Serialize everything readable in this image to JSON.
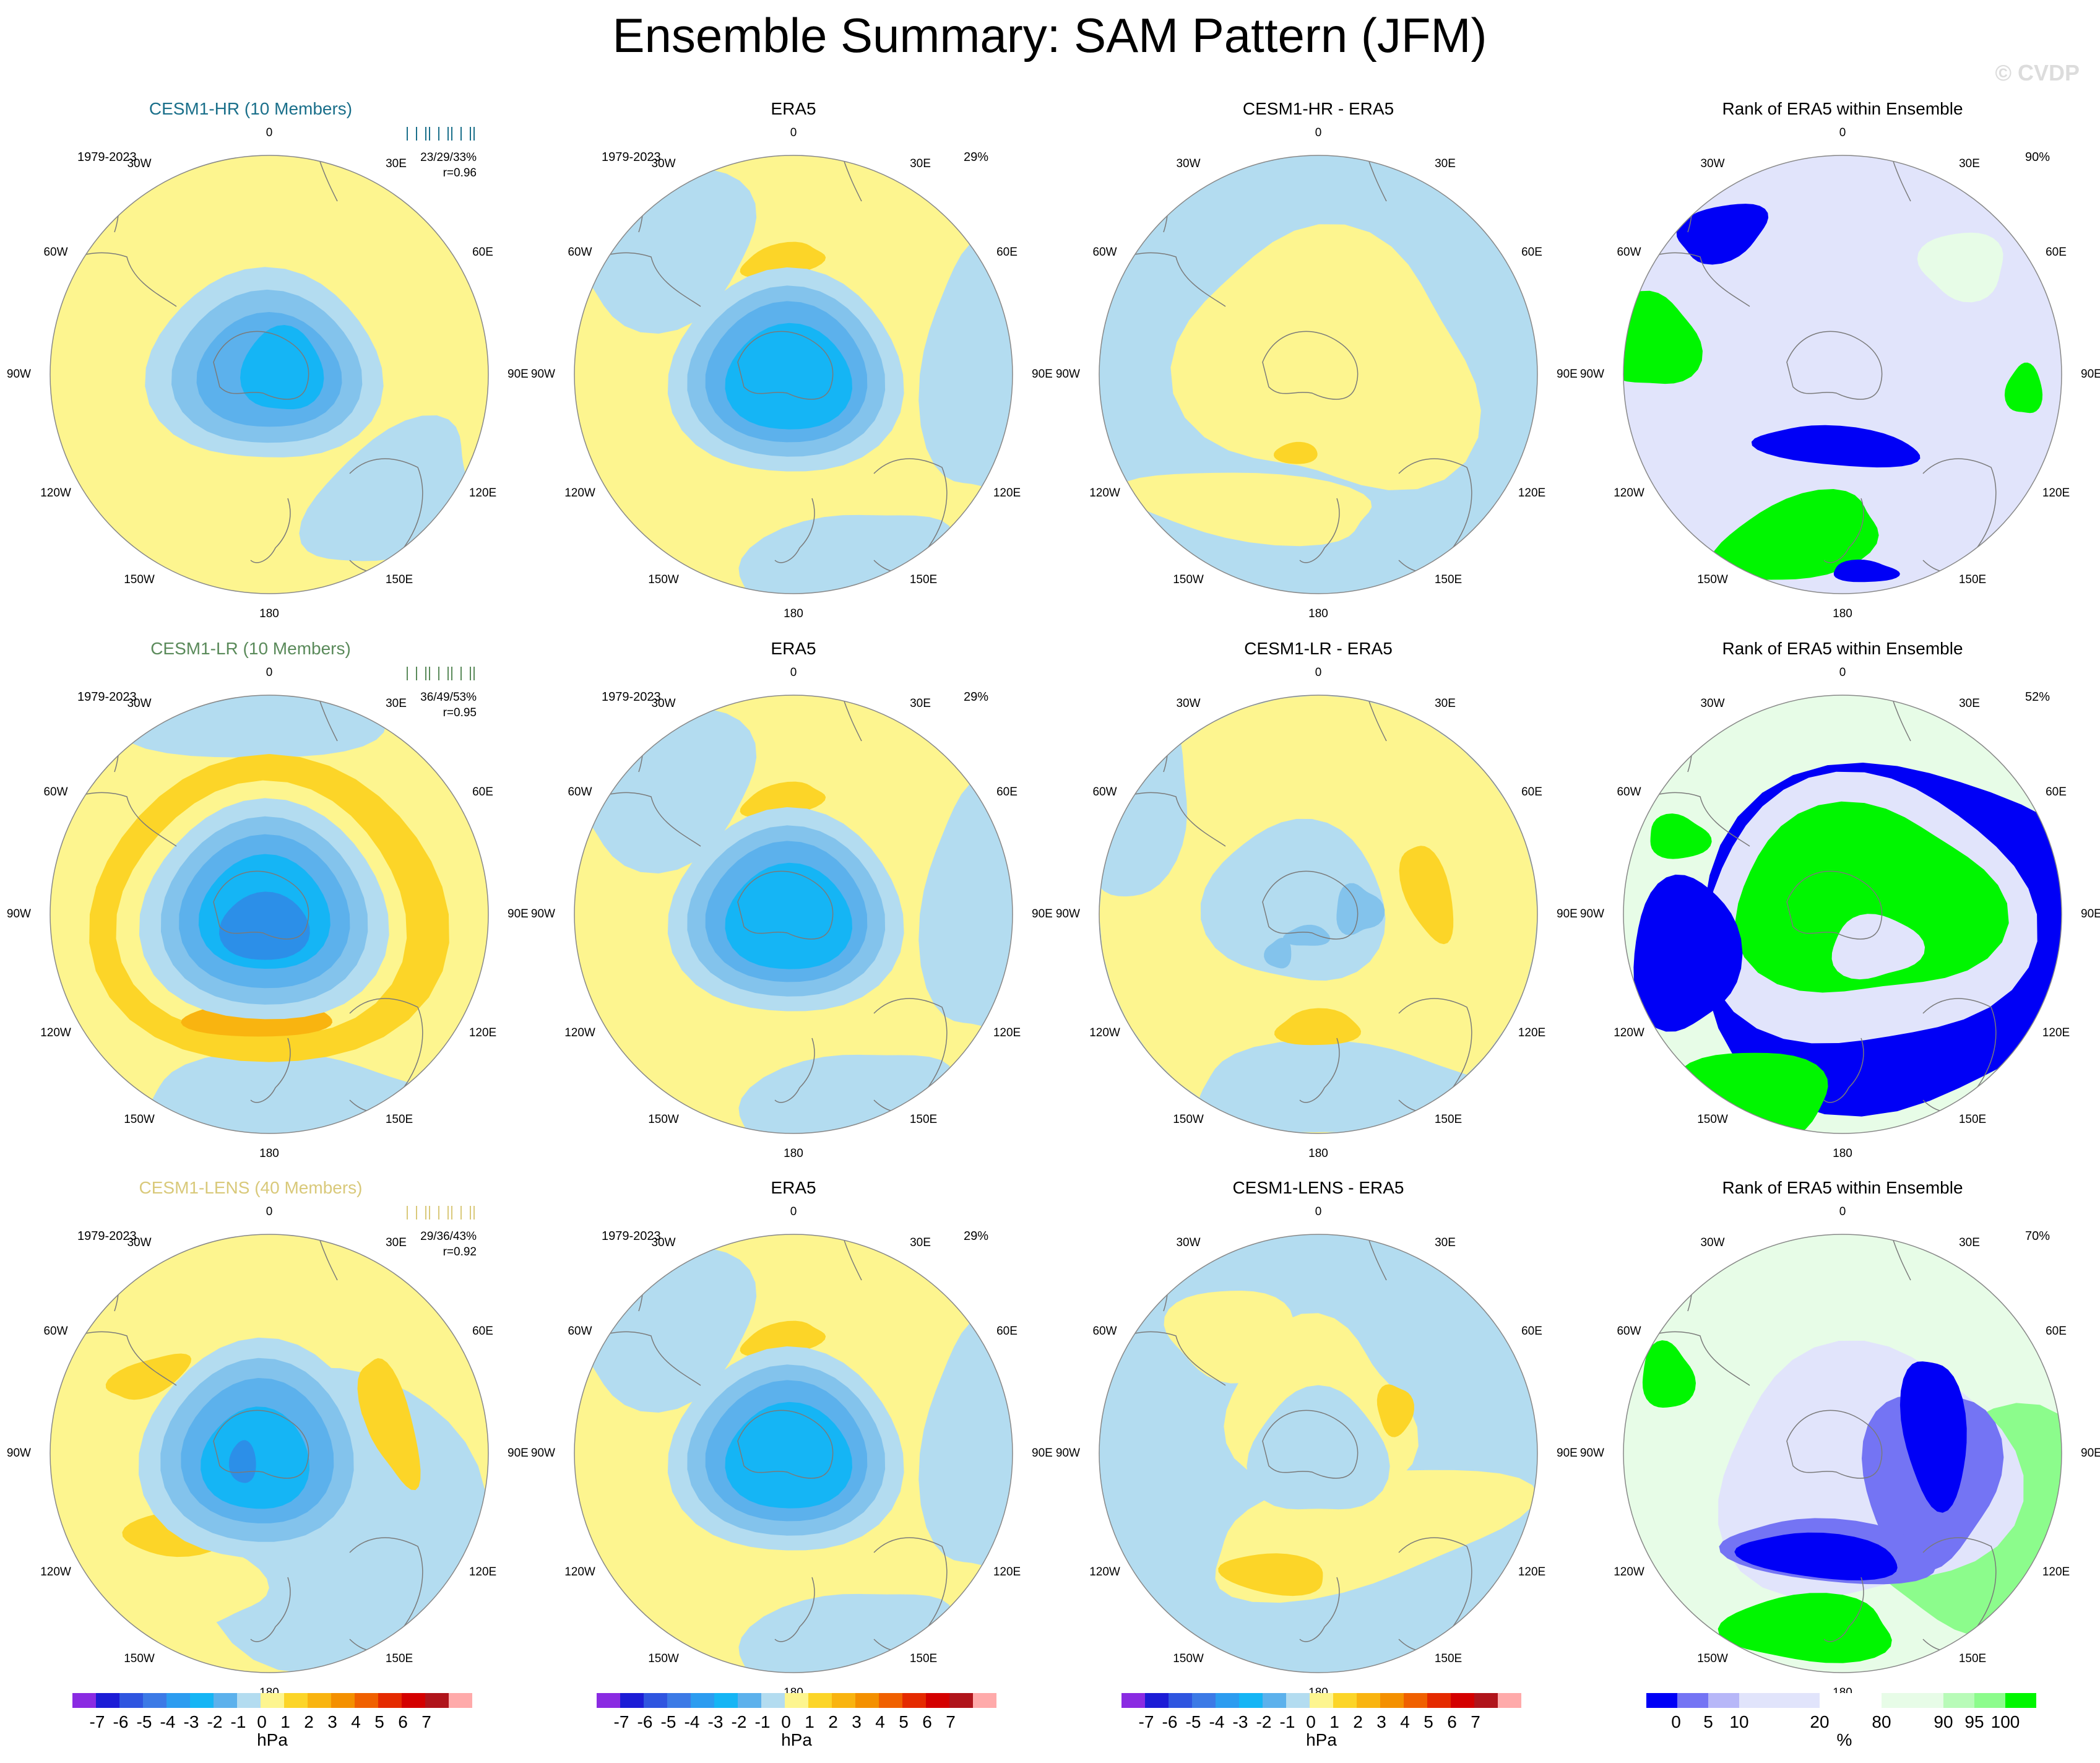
{
  "title": "Ensemble Summary: SAM Pattern (JFM)",
  "watermark": "© CVDP",
  "lon_labels": [
    "0",
    "30E",
    "60E",
    "90E",
    "120E",
    "150E",
    "180",
    "150W",
    "120W",
    "90W",
    "60W",
    "30W"
  ],
  "colors": {
    "ocean_neg1": "#b3dcf0",
    "pos1": "#fdf58f",
    "pos2": "#fcd528",
    "pos3": "#f9b410",
    "neg2": "#83c3ec",
    "neg3": "#5cb1ec",
    "neg4": "#15b5f5",
    "neg5": "#2c8fe8",
    "rank_low": "#0000f6",
    "rank_mid_low": "#7474f4",
    "rank_light_low": "#e1e4fb",
    "rank_light_high": "#e7fce7",
    "rank_mid_high": "#8cfc8c",
    "rank_high": "#00f600"
  },
  "rows": [
    {
      "model_label": "CESM1-HR (10 Members)",
      "model_color": "#1a6f8a",
      "years": "1979-2023",
      "stats": "23/29/33%",
      "corr": "r=0.96",
      "era_pct": "29%",
      "diff_title": "CESM1-HR - ERA5",
      "rank_title": "Rank of ERA5 within Ensemble",
      "rank_pct": "90%"
    },
    {
      "model_label": "CESM1-LR (10 Members)",
      "model_color": "#5a8a5a",
      "years": "1979-2023",
      "stats": "36/49/53%",
      "corr": "r=0.95",
      "era_pct": "29%",
      "diff_title": "CESM1-LR - ERA5",
      "rank_title": "Rank of ERA5 within Ensemble",
      "rank_pct": "52%"
    },
    {
      "model_label": "CESM1-LENS (40 Members)",
      "model_color": "#d9c97a",
      "years": "1979-2023",
      "stats": "29/36/43%",
      "corr": "r=0.92",
      "era_pct": "29%",
      "diff_title": "CESM1-LENS - ERA5",
      "rank_title": "Rank of ERA5 within Ensemble",
      "rank_pct": "70%"
    }
  ],
  "era_title": "ERA5",
  "chart_data": {
    "type": "heatmap",
    "projection": "south-polar-stereographic",
    "panels": [
      {
        "row": 0,
        "col": 0,
        "title": "CESM1-HR (10 Members)",
        "field": "SAM pattern",
        "max_anomaly_hpa": -4,
        "min_anomaly_hpa": 0
      },
      {
        "row": 0,
        "col": 1,
        "title": "ERA5",
        "field": "SAM pattern",
        "max_anomaly_hpa": -4,
        "min_anomaly_hpa": 1
      },
      {
        "row": 0,
        "col": 2,
        "title": "CESM1-HR - ERA5",
        "field": "difference",
        "range_hpa": [
          -1,
          1
        ]
      },
      {
        "row": 0,
        "col": 3,
        "title": "Rank of ERA5 within Ensemble",
        "field": "rank",
        "value_pct": 90
      },
      {
        "row": 1,
        "col": 0,
        "title": "CESM1-LR (10 Members)",
        "field": "SAM pattern",
        "max_anomaly_hpa": -5,
        "min_anomaly_hpa": 3
      },
      {
        "row": 1,
        "col": 1,
        "title": "ERA5",
        "field": "SAM pattern",
        "max_anomaly_hpa": -4,
        "min_anomaly_hpa": 1
      },
      {
        "row": 1,
        "col": 2,
        "title": "CESM1-LR - ERA5",
        "field": "difference",
        "range_hpa": [
          -2,
          2
        ]
      },
      {
        "row": 1,
        "col": 3,
        "title": "Rank of ERA5 within Ensemble",
        "field": "rank",
        "value_pct": 52
      },
      {
        "row": 2,
        "col": 0,
        "title": "CESM1-LENS (40 Members)",
        "field": "SAM pattern",
        "max_anomaly_hpa": -5,
        "min_anomaly_hpa": 2
      },
      {
        "row": 2,
        "col": 1,
        "title": "ERA5",
        "field": "SAM pattern",
        "max_anomaly_hpa": -4,
        "min_anomaly_hpa": 1
      },
      {
        "row": 2,
        "col": 2,
        "title": "CESM1-LENS - ERA5",
        "field": "difference",
        "range_hpa": [
          -1,
          2
        ]
      },
      {
        "row": 2,
        "col": 3,
        "title": "Rank of ERA5 within Ensemble",
        "field": "rank",
        "value_pct": 70
      }
    ],
    "colorbar_hpa": {
      "label": "hPa",
      "ticks": [
        "-7",
        "-6",
        "-5",
        "-4",
        "-3",
        "-2",
        "-1",
        "0",
        "1",
        "2",
        "3",
        "4",
        "5",
        "6",
        "7"
      ],
      "colors": [
        "#8a2be2",
        "#1c1cd6",
        "#2f55e0",
        "#3c7ae6",
        "#2c9cf0",
        "#15b5f5",
        "#5cb1ec",
        "#b3dcf0",
        "#fdf58f",
        "#fcd528",
        "#f9b410",
        "#f49000",
        "#f06000",
        "#e52a00",
        "#d40000",
        "#b0141b",
        "#ffaaaa"
      ]
    },
    "colorbar_rank": {
      "label": "%",
      "ticks": [
        "0",
        "5",
        "10",
        "20",
        "80",
        "90",
        "95",
        "100"
      ],
      "colors": [
        "#0000f6",
        "#7474f4",
        "#b7b7f8",
        "#e1e4fb",
        "#ffffff",
        "#e7fce7",
        "#b8fbb8",
        "#8cfc8c",
        "#00f600"
      ]
    }
  }
}
